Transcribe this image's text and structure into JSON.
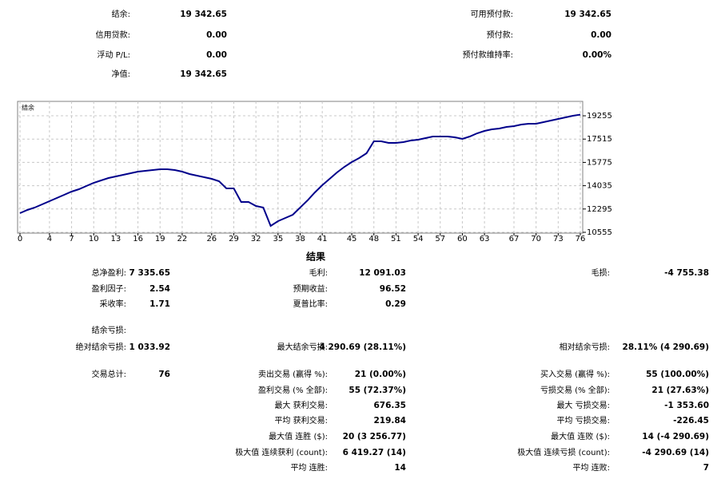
{
  "summary": {
    "left": [
      {
        "label": "结余:",
        "value": "19 342.65"
      },
      {
        "label": "信用贷款:",
        "value": "0.00"
      },
      {
        "label": "浮动 P/L:",
        "value": "0.00"
      },
      {
        "label": "净值:",
        "value": "19 342.65"
      }
    ],
    "right": [
      {
        "label": "可用预付款:",
        "value": "19 342.65"
      },
      {
        "label": "预付款:",
        "value": "0.00"
      },
      {
        "label": "预付款维持率:",
        "value": "0.00%"
      }
    ]
  },
  "chart_data": {
    "type": "line",
    "x": [
      0,
      1,
      2,
      3,
      4,
      5,
      6,
      7,
      8,
      9,
      10,
      11,
      12,
      13,
      14,
      15,
      16,
      17,
      18,
      19,
      20,
      21,
      22,
      23,
      24,
      25,
      26,
      27,
      28,
      29,
      30,
      31,
      32,
      33,
      34,
      35,
      36,
      37,
      38,
      39,
      40,
      41,
      42,
      43,
      44,
      45,
      46,
      47,
      48,
      49,
      50,
      51,
      52,
      53,
      54,
      55,
      56,
      57,
      58,
      59,
      60,
      61,
      62,
      63,
      64,
      65,
      66,
      67,
      68,
      69,
      70,
      71,
      72,
      73,
      74,
      75,
      76
    ],
    "series": [
      {
        "name": "结余",
        "color": "#00008b",
        "values": [
          11985,
          12224,
          12403,
          12641,
          12879,
          13118,
          13356,
          13595,
          13773,
          14012,
          14250,
          14429,
          14608,
          14727,
          14846,
          14965,
          15085,
          15144,
          15204,
          15263,
          15263,
          15204,
          15085,
          14906,
          14787,
          14667,
          14548,
          14369,
          13833,
          13833,
          12820,
          12820,
          12522,
          12403,
          11032,
          11389,
          11628,
          11866,
          12403,
          12939,
          13535,
          14071,
          14548,
          15025,
          15442,
          15800,
          16097,
          16455,
          17349,
          17349,
          17230,
          17230,
          17290,
          17409,
          17469,
          17588,
          17707,
          17707,
          17707,
          17647,
          17528,
          17707,
          17945,
          18124,
          18243,
          18303,
          18422,
          18482,
          18601,
          18661,
          18661,
          18780,
          18899,
          19018,
          19137,
          19257,
          19343
        ]
      }
    ],
    "xlim": [
      0,
      76
    ],
    "xticks": [
      0,
      4,
      7,
      10,
      13,
      16,
      19,
      22,
      26,
      29,
      32,
      35,
      38,
      41,
      45,
      48,
      51,
      54,
      57,
      60,
      63,
      67,
      70,
      73,
      76
    ],
    "ylim": [
      10555,
      20330
    ],
    "yticks": [
      19255,
      17515,
      15775,
      14035,
      12295,
      10555
    ],
    "grid": true
  },
  "results": {
    "title": "结果",
    "rows": [
      {
        "left": {
          "label": "总净盈利:",
          "value": "7 335.65"
        },
        "middle": {
          "label": "毛利:",
          "value": "12 091.03"
        },
        "right": {
          "label": "毛损:",
          "value": "-4 755.38"
        }
      },
      {
        "left": {
          "label": "盈利因子:",
          "value": "2.54"
        },
        "middle": {
          "label": "预期收益:",
          "value": "96.52"
        }
      },
      {
        "left": {
          "label": "采收率:",
          "value": "1.71"
        },
        "middle": {
          "label": "夏普比率:",
          "value": "0.29"
        }
      },
      {
        "left": {
          "label": "结余亏损:"
        }
      },
      {
        "left": {
          "label": "绝对结余亏损:",
          "value": "1 033.92"
        },
        "middle": {
          "label": "最大结余亏损:",
          "value": "4 290.69 (28.11%)"
        },
        "right": {
          "label": "相对结余亏损:",
          "value": "28.11% (4 290.69)"
        }
      },
      {
        "left": {
          "label": "交易总计:",
          "value": "76"
        },
        "middle": {
          "label": "卖出交易 (赢得 %):",
          "value": "21 (0.00%)"
        },
        "right": {
          "label": "买入交易 (赢得 %):",
          "value": "55 (100.00%)"
        }
      },
      {
        "middle": {
          "label": "盈利交易 (% 全部):",
          "value": "55 (72.37%)"
        },
        "right": {
          "label": "亏损交易 (% 全部):",
          "value": "21 (27.63%)"
        }
      },
      {
        "middle": {
          "label": "最大 获利交易:",
          "value": "676.35"
        },
        "right": {
          "label": "最大 亏损交易:",
          "value": "-1 353.60"
        }
      },
      {
        "middle": {
          "label": "平均 获利交易:",
          "value": "219.84"
        },
        "right": {
          "label": "平均 亏损交易:",
          "value": "-226.45"
        }
      },
      {
        "middle": {
          "label": "最大值 连胜 ($):",
          "value": "20 (3 256.77)"
        },
        "right": {
          "label": "最大值 连败 ($):",
          "value": "14 (-4 290.69)"
        }
      },
      {
        "middle": {
          "label": "极大值 连续获利 (count):",
          "value": "6 419.27 (14)"
        },
        "right": {
          "label": "极大值 连续亏损 (count):",
          "value": "-4 290.69 (14)"
        }
      },
      {
        "middle": {
          "label": "平均 连胜:",
          "value": "14"
        },
        "right": {
          "label": "平均 连败:",
          "value": "7"
        }
      }
    ]
  }
}
